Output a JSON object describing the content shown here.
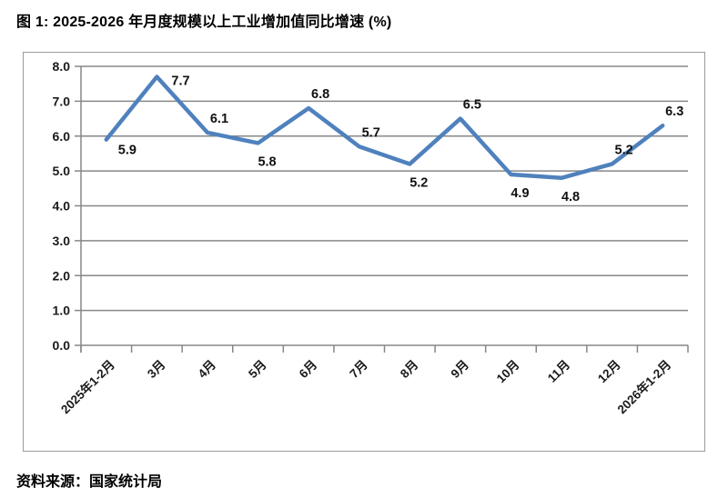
{
  "title": "图 1: 2025-2026 年月度规模以上工业增加值同比增速 (%)",
  "source": "资料来源：国家统计局",
  "chart_data": {
    "type": "line",
    "categories": [
      "2025年1-2月",
      "3月",
      "4月",
      "5月",
      "6月",
      "7月",
      "8月",
      "9月",
      "10月",
      "11月",
      "12月",
      "2026年1-2月"
    ],
    "values": [
      5.9,
      7.7,
      6.1,
      5.8,
      6.8,
      5.7,
      5.2,
      6.5,
      4.9,
      4.8,
      5.2,
      6.3
    ],
    "title": "2025-2026 年月度规模以上工业增加值同比增速 (%)",
    "xlabel": "",
    "ylabel": "",
    "ylim": [
      0.0,
      8.0
    ],
    "ytick_step": 1.0,
    "ytick_labels": [
      "0.0",
      "1.0",
      "2.0",
      "3.0",
      "4.0",
      "5.0",
      "6.0",
      "7.0",
      "8.0"
    ],
    "grid": true,
    "legend": false,
    "line_color": "#4F81BD",
    "grid_color": "#878787",
    "label_positions": [
      "below-right",
      "right",
      "above",
      "below",
      "above",
      "above",
      "below",
      "above",
      "below",
      "below",
      "above",
      "above"
    ]
  }
}
